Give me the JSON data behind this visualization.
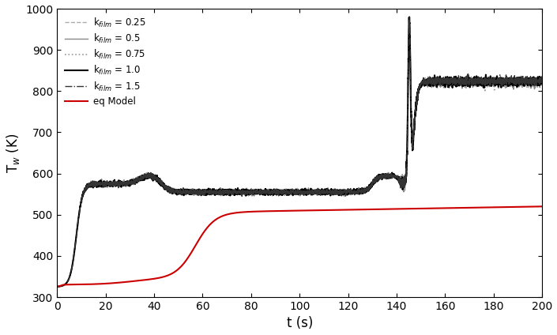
{
  "title": "",
  "xlabel": "t (s)",
  "ylabel": "T$_w$ (K)",
  "xlim": [
    0,
    200
  ],
  "ylim": [
    300,
    1000
  ],
  "xticks": [
    0,
    20,
    40,
    60,
    80,
    100,
    120,
    140,
    160,
    180,
    200
  ],
  "yticks": [
    300,
    400,
    500,
    600,
    700,
    800,
    900,
    1000
  ],
  "legend_entries": [
    {
      "label": "k$_{film}$ = 0.25",
      "color": "#aaaaaa",
      "linestyle": "--",
      "linewidth": 1.0
    },
    {
      "label": "k$_{film}$ = 0.5",
      "color": "#888888",
      "linestyle": "-",
      "linewidth": 1.0
    },
    {
      "label": "k$_{film}$ = 0.75",
      "color": "#999999",
      "linestyle": ":",
      "linewidth": 1.2
    },
    {
      "label": "k$_{film}$ = 1.0",
      "color": "#000000",
      "linestyle": "-",
      "linewidth": 1.5
    },
    {
      "label": "k$_{film}$ = 1.5",
      "color": "#333333",
      "linestyle": "-.",
      "linewidth": 1.0
    },
    {
      "label": "eq Model",
      "color": "#cc0000",
      "linestyle": "-",
      "linewidth": 1.5
    }
  ],
  "background_color": "#ffffff"
}
